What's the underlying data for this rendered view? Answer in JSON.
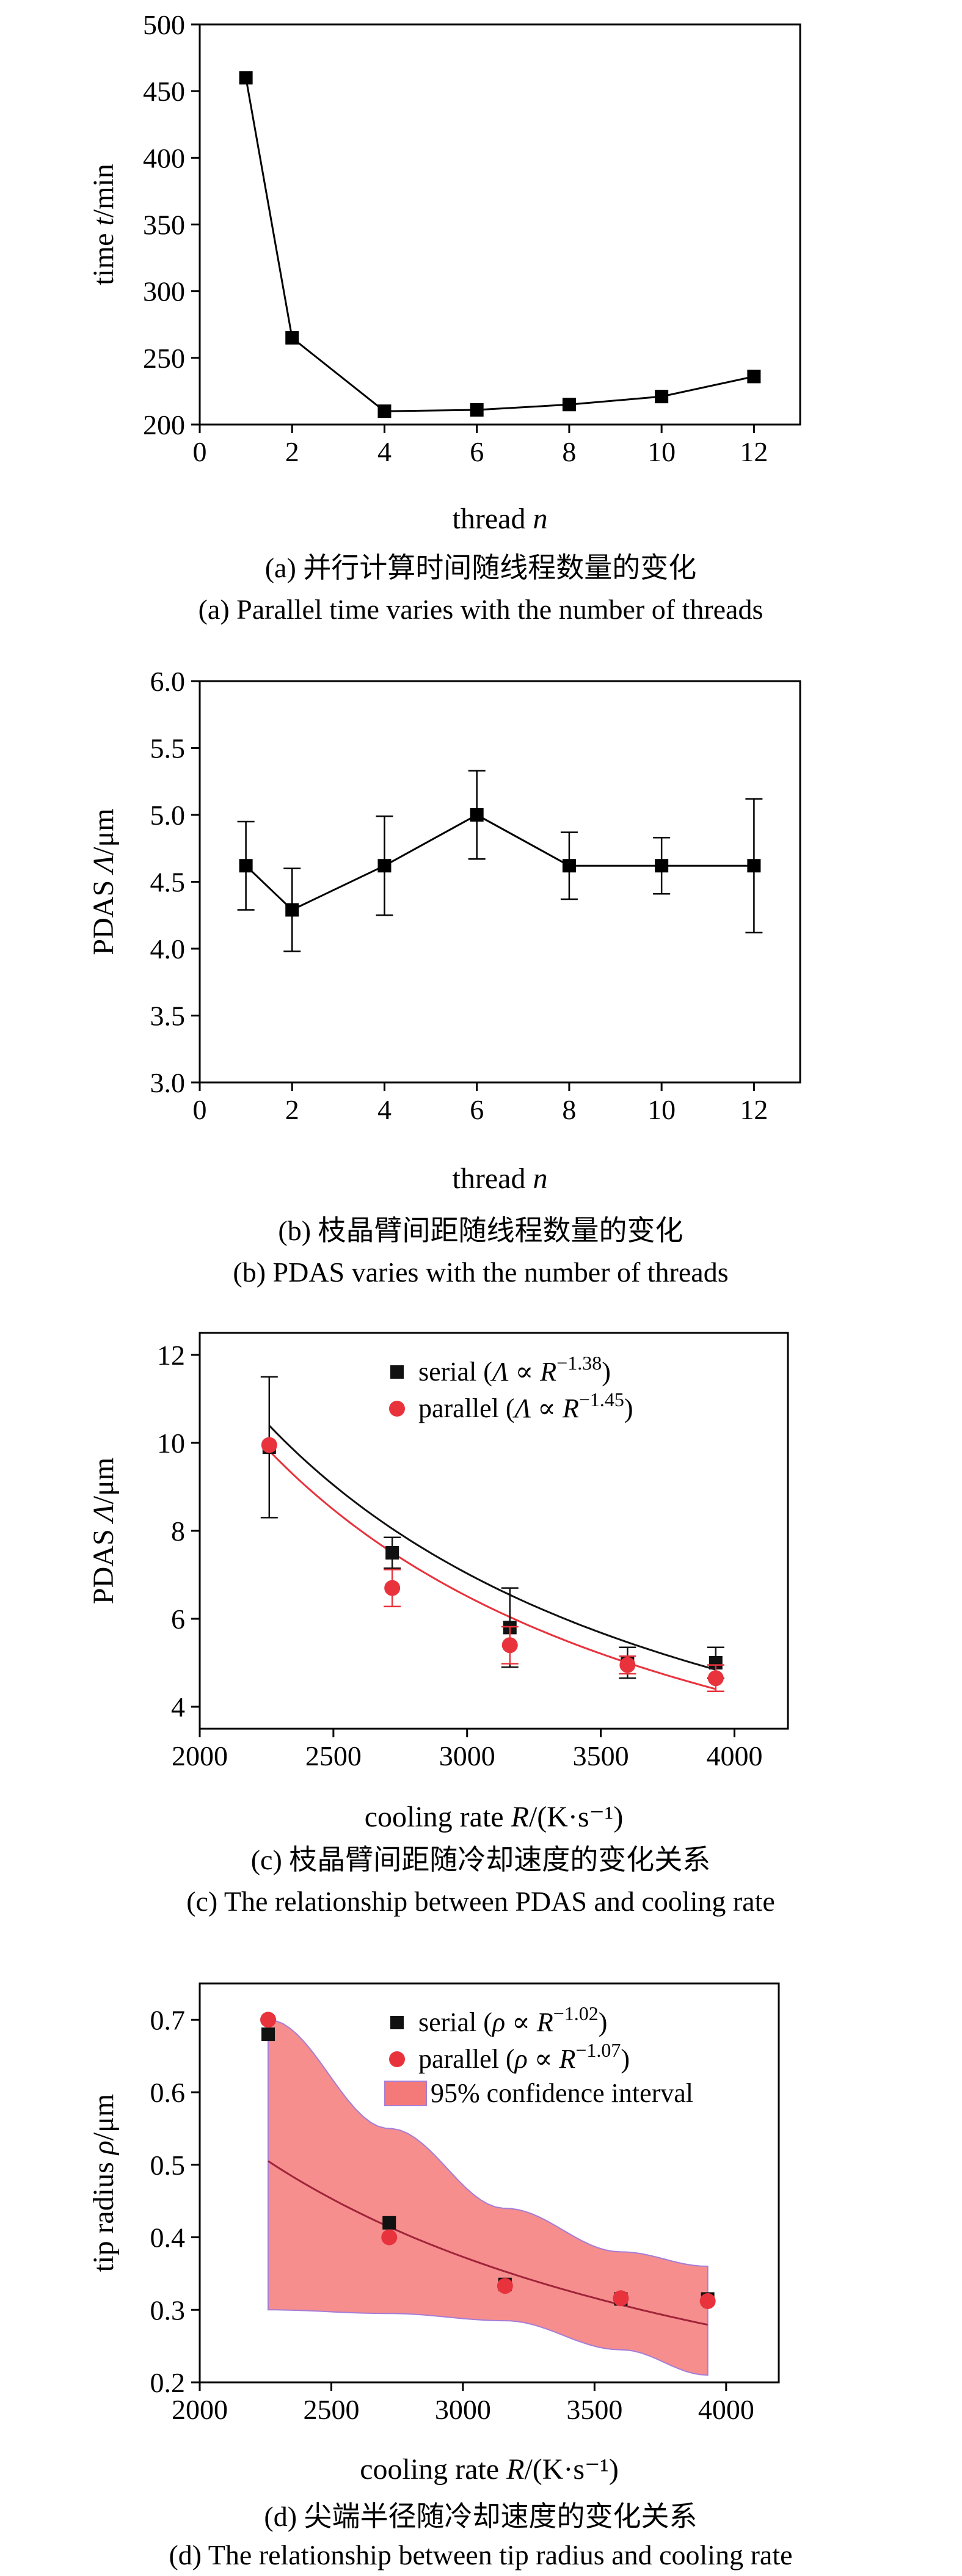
{
  "chart_data": [
    {
      "type": "line",
      "caption_cn": "(a) 并行计算时间随线程数量的变化",
      "caption_en": "(a) Parallel time varies with the number of threads",
      "xlabel": {
        "pre": "thread ",
        "var": "n",
        "post": ""
      },
      "ylabel": {
        "pre": "time ",
        "var": "t",
        "post": "/min"
      },
      "xlim": [
        0,
        13
      ],
      "ylim": [
        200,
        500
      ],
      "xticks": [
        0,
        2,
        4,
        6,
        8,
        10,
        12
      ],
      "yticks": [
        200,
        250,
        300,
        350,
        400,
        450,
        500
      ],
      "series": [
        {
          "x": [
            1,
            2,
            4,
            6,
            8,
            10,
            12
          ],
          "y": [
            460,
            265,
            210,
            211,
            215,
            221,
            236
          ]
        }
      ]
    },
    {
      "type": "line",
      "caption_cn": "(b) 枝晶臂间距随线程数量的变化",
      "caption_en": "(b) PDAS varies with the number of threads",
      "xlabel": {
        "pre": "thread ",
        "var": "n",
        "post": ""
      },
      "ylabel": {
        "pre": "PDAS ",
        "var": "Λ",
        "post": "/μm"
      },
      "xlim": [
        0,
        13
      ],
      "ylim": [
        3.0,
        6.0
      ],
      "xticks": [
        0,
        2,
        4,
        6,
        8,
        10,
        12
      ],
      "yticks": [
        3.0,
        3.5,
        4.0,
        4.5,
        5.0,
        5.5,
        6.0
      ],
      "ytick_labels": [
        "3.0",
        "3.5",
        "4.0",
        "4.5",
        "5.0",
        "5.5",
        "6.0"
      ],
      "series": [
        {
          "x": [
            1,
            2,
            4,
            6,
            8,
            10,
            12
          ],
          "y": [
            4.62,
            4.29,
            4.62,
            5.0,
            4.62,
            4.62,
            4.62
          ],
          "err": [
            0.33,
            0.31,
            0.37,
            0.33,
            0.25,
            0.21,
            0.5
          ]
        }
      ]
    },
    {
      "type": "scatter",
      "caption_cn": "(c) 枝晶臂间距随冷却速度的变化关系",
      "caption_en": "(c) The relationship between PDAS and cooling rate",
      "xlabel": {
        "pre": "cooling rate ",
        "var": "R",
        "post": "/(K·s⁻¹)"
      },
      "ylabel": {
        "pre": "PDAS ",
        "var": "Λ",
        "post": "/μm"
      },
      "xlim": [
        2000,
        4200
      ],
      "ylim": [
        3.5,
        12.5
      ],
      "xticks": [
        2000,
        2500,
        3000,
        3500,
        4000
      ],
      "yticks": [
        4,
        6,
        8,
        10,
        12
      ],
      "legend_position": "top-right",
      "series": [
        {
          "name": "serial",
          "legend_var": "Λ",
          "exponent": "−1.38",
          "marker": "square",
          "color": "#111111",
          "x": [
            2260,
            2720,
            3160,
            3600,
            3930
          ],
          "y": [
            9.9,
            7.5,
            5.8,
            5.0,
            5.0
          ],
          "err": [
            1.6,
            0.35,
            0.9,
            0.35,
            0.35
          ],
          "fit": {
            "A": 442000.0,
            "k": -1.38
          }
        },
        {
          "name": "parallel",
          "legend_var": "Λ",
          "exponent": "−1.45",
          "marker": "circle",
          "color": "#e8333d",
          "x": [
            2260,
            2720,
            3160,
            3600,
            3930
          ],
          "y": [
            9.95,
            6.7,
            5.4,
            4.95,
            4.65
          ],
          "err": [
            0.0,
            0.42,
            0.42,
            0.2,
            0.3
          ],
          "fit": {
            "A": 717000.0,
            "k": -1.45
          }
        }
      ]
    },
    {
      "type": "scatter",
      "caption_cn": "(d) 尖端半径随冷却速度的变化关系",
      "caption_en": "(d) The relationship between tip radius and cooling rate",
      "xlabel": {
        "pre": "cooling rate ",
        "var": "R",
        "post": "/(K·s⁻¹)"
      },
      "ylabel": {
        "pre": "tip radius ",
        "var": "ρ",
        "post": "/μm"
      },
      "xlim": [
        2000,
        4200
      ],
      "ylim": [
        0.2,
        0.75
      ],
      "xticks": [
        2000,
        2500,
        3000,
        3500,
        4000
      ],
      "yticks": [
        0.2,
        0.3,
        0.4,
        0.5,
        0.6,
        0.7
      ],
      "ytick_labels": [
        "0.2",
        "0.3",
        "0.4",
        "0.5",
        "0.6",
        "0.7"
      ],
      "legend_position": "top-right",
      "band_label": "95% confidence interval",
      "band_color": "#f47a7a",
      "band": {
        "x": [
          2260,
          2720,
          3160,
          3600,
          3930
        ],
        "upper": [
          0.7,
          0.55,
          0.44,
          0.38,
          0.36
        ],
        "lower": [
          0.3,
          0.295,
          0.285,
          0.245,
          0.21
        ]
      },
      "series": [
        {
          "name": "serial",
          "legend_var": "ρ",
          "exponent": "−1.02",
          "marker": "square",
          "color": "#111111",
          "x": [
            2260,
            2720,
            3160,
            3600,
            3930
          ],
          "y": [
            0.68,
            0.42,
            0.335,
            0.315,
            0.315
          ]
        },
        {
          "name": "parallel",
          "legend_var": "ρ",
          "exponent": "−1.07",
          "marker": "circle",
          "color": "#e8333d",
          "x": [
            2260,
            2720,
            3160,
            3600,
            3930
          ],
          "y": [
            0.7,
            0.4,
            0.333,
            0.316,
            0.312
          ],
          "fit": {
            "A": 1960.0,
            "k": -1.07
          }
        }
      ]
    }
  ]
}
